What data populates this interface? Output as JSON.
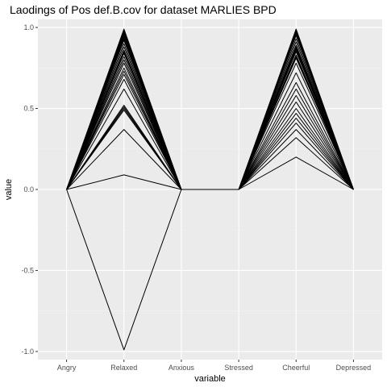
{
  "chart_data": {
    "type": "line",
    "title": "Laodings of Pos def.B.cov for dataset MARLIES BPD",
    "xlabel": "variable",
    "ylabel": "value",
    "categories": [
      "Angry",
      "Relaxed",
      "Anxious",
      "Stressed",
      "Cheerful",
      "Depressed"
    ],
    "ylim": [
      -1.05,
      1.05
    ],
    "yticks": [
      -1.0,
      -0.5,
      0.0,
      0.5,
      1.0
    ],
    "ytick_labels": [
      "-1.0",
      "-0.5",
      "0.0",
      "0.5",
      "1.0"
    ],
    "grid": true,
    "legend": "none",
    "colors": {
      "panel": "#EBEBEB",
      "grid_major": "#FFFFFF",
      "grid_minor": "#F2F2F2",
      "line": "#000000"
    },
    "series": [
      {
        "values": [
          0,
          0.99,
          0,
          0,
          0.2,
          0
        ]
      },
      {
        "values": [
          0,
          0.98,
          0,
          0,
          0.32,
          0
        ]
      },
      {
        "values": [
          0,
          0.97,
          0,
          0,
          0.37,
          0
        ]
      },
      {
        "values": [
          0,
          0.96,
          0,
          0,
          0.41,
          0
        ]
      },
      {
        "values": [
          0,
          0.95,
          0,
          0,
          0.44,
          0
        ]
      },
      {
        "values": [
          0,
          0.94,
          0,
          0,
          0.47,
          0
        ]
      },
      {
        "values": [
          0,
          0.93,
          0,
          0,
          0.5,
          0
        ]
      },
      {
        "values": [
          0,
          0.92,
          0,
          0,
          0.54,
          0
        ]
      },
      {
        "values": [
          0,
          0.9,
          0,
          0,
          0.58,
          0
        ]
      },
      {
        "values": [
          0,
          0.88,
          0,
          0,
          0.62,
          0
        ]
      },
      {
        "values": [
          0,
          0.86,
          0,
          0,
          0.66,
          0
        ]
      },
      {
        "values": [
          0,
          0.85,
          0,
          0,
          0.72,
          0
        ]
      },
      {
        "values": [
          0,
          0.84,
          0,
          0,
          0.78,
          0
        ]
      },
      {
        "values": [
          0,
          0.82,
          0,
          0,
          0.81,
          0
        ]
      },
      {
        "values": [
          0,
          0.8,
          0,
          0,
          0.83,
          0
        ]
      },
      {
        "values": [
          0,
          0.78,
          0,
          0,
          0.85,
          0
        ]
      },
      {
        "values": [
          0,
          0.75,
          0,
          0,
          0.87,
          0
        ]
      },
      {
        "values": [
          0,
          0.73,
          0,
          0,
          0.89,
          0
        ]
      },
      {
        "values": [
          0,
          0.71,
          0,
          0,
          0.91,
          0
        ]
      },
      {
        "values": [
          0,
          0.68,
          0,
          0,
          0.93,
          0
        ]
      },
      {
        "values": [
          0,
          0.62,
          0,
          0,
          0.95,
          0
        ]
      },
      {
        "values": [
          0,
          0.52,
          0,
          0,
          0.96,
          0
        ]
      },
      {
        "values": [
          0,
          0.51,
          0,
          0,
          0.97,
          0
        ]
      },
      {
        "values": [
          0,
          0.5,
          0,
          0,
          0.98,
          0
        ]
      },
      {
        "values": [
          0,
          0.49,
          0,
          0,
          0.99,
          0
        ]
      },
      {
        "values": [
          0,
          0.37,
          0,
          0,
          0.86,
          0
        ]
      },
      {
        "values": [
          0,
          0.09,
          0,
          0,
          0.88,
          0
        ]
      },
      {
        "values": [
          0,
          -0.99,
          0,
          0,
          0.82,
          0
        ]
      }
    ]
  }
}
